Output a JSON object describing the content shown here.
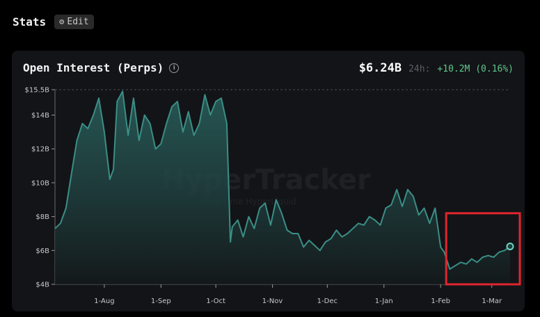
{
  "header": {
    "title": "Stats",
    "edit_label": "Edit"
  },
  "card": {
    "title": "Open Interest (Perps)",
    "value": "$6.24B",
    "change_label": "24h:",
    "change_value": "+10.2M (0.16%)",
    "watermark": "HyperTracker",
    "watermark_sub": "Real-Time HyperLiquid"
  },
  "colors": {
    "line": "#3a8f86",
    "area_top": "#2c6b66",
    "area_bottom": "#14191b",
    "positive": "#5ec98b",
    "highlight": "#e0252d",
    "grid": "#4a4d55"
  },
  "chart_data": {
    "type": "area",
    "ylabel": "",
    "xlabel": "",
    "ylim": [
      4,
      15.5
    ],
    "y_ticks": [
      {
        "value": 4,
        "label": "$4B"
      },
      {
        "value": 6,
        "label": "$6B"
      },
      {
        "value": 8,
        "label": "$8B"
      },
      {
        "value": 10,
        "label": "$10B"
      },
      {
        "value": 12,
        "label": "$12B"
      },
      {
        "value": 14,
        "label": "$14B"
      },
      {
        "value": 15.5,
        "label": "$15.5B"
      }
    ],
    "x_ticks": [
      {
        "date": "2024-08-01",
        "label": "1-Aug"
      },
      {
        "date": "2024-09-01",
        "label": "1-Sep"
      },
      {
        "date": "2024-10-01",
        "label": "1-Oct"
      },
      {
        "date": "2024-11-01",
        "label": "1-Nov"
      },
      {
        "date": "2024-12-01",
        "label": "1-Dec"
      },
      {
        "date": "2025-01-01",
        "label": "1-Jan"
      },
      {
        "date": "2025-02-01",
        "label": "1-Feb"
      },
      {
        "date": "2025-03-01",
        "label": "1-Mar"
      }
    ],
    "x_range": [
      "2024-07-05",
      "2025-03-11"
    ],
    "reference_line": 15.5,
    "series": [
      {
        "x": [
          "2024-07-05",
          "2024-07-08",
          "2024-07-11",
          "2024-07-14",
          "2024-07-17",
          "2024-07-20",
          "2024-07-23",
          "2024-07-26",
          "2024-07-29",
          "2024-08-01",
          "2024-08-04",
          "2024-08-06",
          "2024-08-08",
          "2024-08-11",
          "2024-08-14",
          "2024-08-17",
          "2024-08-20",
          "2024-08-23",
          "2024-08-26",
          "2024-08-29",
          "2024-09-01",
          "2024-09-04",
          "2024-09-07",
          "2024-09-10",
          "2024-09-13",
          "2024-09-16",
          "2024-09-19",
          "2024-09-22",
          "2024-09-25",
          "2024-09-28",
          "2024-10-01",
          "2024-10-04",
          "2024-10-07",
          "2024-10-09",
          "2024-10-10",
          "2024-10-13",
          "2024-10-16",
          "2024-10-19",
          "2024-10-22",
          "2024-10-25",
          "2024-10-28",
          "2024-10-31",
          "2024-11-03",
          "2024-11-06",
          "2024-11-09",
          "2024-11-12",
          "2024-11-15",
          "2024-11-18",
          "2024-11-21",
          "2024-11-24",
          "2024-11-27",
          "2024-11-30",
          "2024-12-03",
          "2024-12-06",
          "2024-12-09",
          "2024-12-12",
          "2024-12-15",
          "2024-12-18",
          "2024-12-21",
          "2024-12-24",
          "2024-12-27",
          "2024-12-30",
          "2025-01-02",
          "2025-01-05",
          "2025-01-08",
          "2025-01-11",
          "2025-01-14",
          "2025-01-17",
          "2025-01-20",
          "2025-01-23",
          "2025-01-26",
          "2025-01-29",
          "2025-02-01",
          "2025-02-03",
          "2025-02-06",
          "2025-02-09",
          "2025-02-12",
          "2025-02-15",
          "2025-02-18",
          "2025-02-21",
          "2025-02-24",
          "2025-02-27",
          "2025-03-02",
          "2025-03-05",
          "2025-03-08",
          "2025-03-11"
        ],
        "values": [
          7.3,
          7.6,
          8.5,
          10.5,
          12.5,
          13.5,
          13.2,
          14.0,
          15.0,
          13.0,
          10.2,
          10.8,
          14.8,
          15.4,
          12.8,
          15.0,
          12.5,
          14.0,
          13.5,
          12.0,
          12.3,
          13.5,
          14.5,
          14.8,
          13.0,
          14.2,
          12.8,
          13.5,
          15.2,
          14.0,
          14.8,
          15.0,
          13.5,
          6.5,
          7.4,
          7.8,
          6.8,
          8.0,
          7.3,
          8.5,
          8.8,
          7.5,
          9.0,
          8.2,
          7.2,
          7.0,
          7.0,
          6.2,
          6.6,
          6.3,
          6.0,
          6.5,
          6.7,
          7.2,
          6.8,
          7.0,
          7.3,
          7.6,
          7.5,
          8.0,
          7.8,
          7.5,
          8.5,
          8.7,
          9.6,
          8.6,
          9.6,
          9.2,
          8.1,
          8.5,
          7.6,
          8.5,
          6.2,
          5.9,
          4.9,
          5.1,
          5.3,
          5.2,
          5.5,
          5.3,
          5.6,
          5.7,
          5.6,
          5.9,
          6.0,
          6.24
        ]
      }
    ],
    "grid": false,
    "legend": "none",
    "latest_point": {
      "date": "2025-03-11",
      "value": 6.24
    }
  }
}
